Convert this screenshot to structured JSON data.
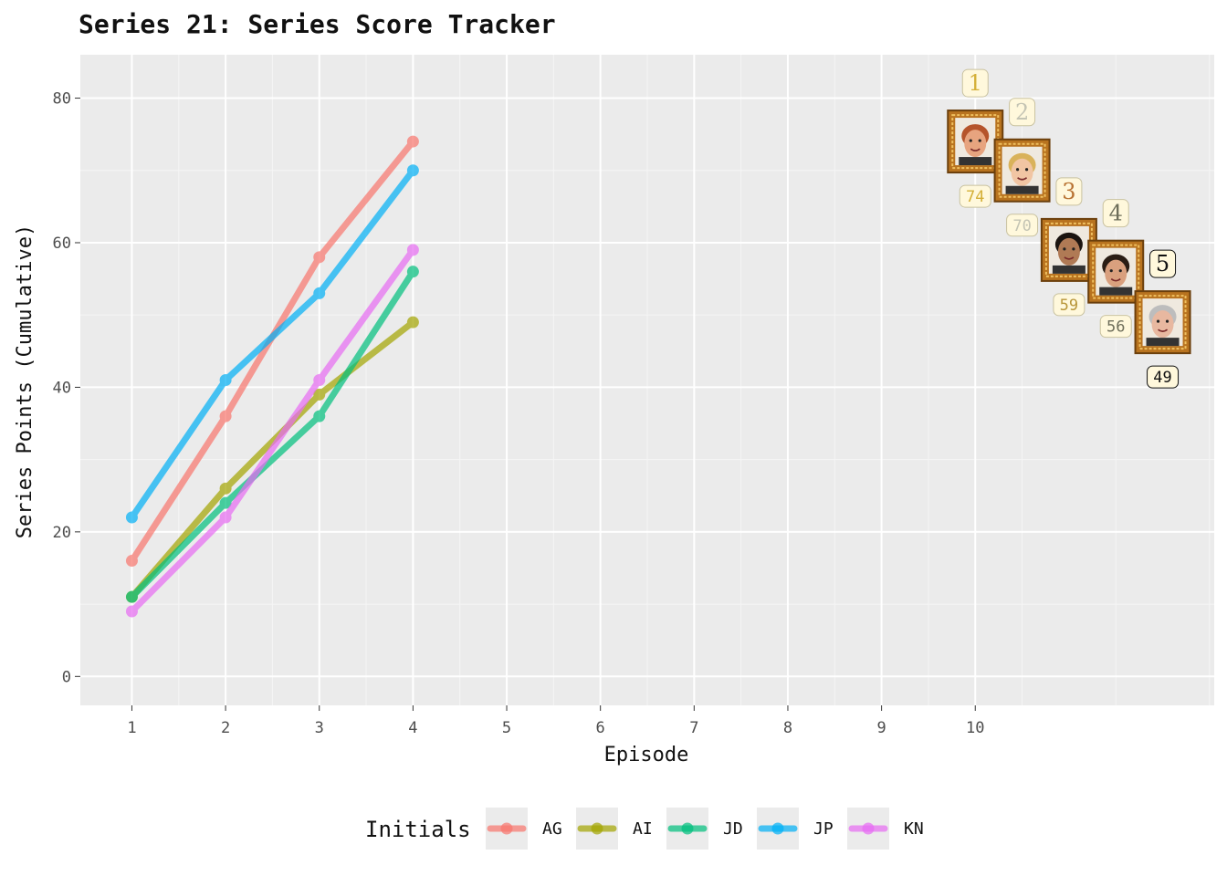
{
  "chart_data": {
    "type": "line",
    "title": "Series 21: Series Score Tracker",
    "xlabel": "Episode",
    "ylabel": "Series Points (Cumulative)",
    "x": [
      1,
      2,
      3,
      4
    ],
    "x_ticks": [
      "1",
      "2",
      "3",
      "4",
      "5",
      "6",
      "7",
      "8",
      "9",
      "10"
    ],
    "y_ticks": [
      "0",
      "20",
      "40",
      "60",
      "80"
    ],
    "xlim": [
      0.45,
      12.55
    ],
    "ylim": [
      -4,
      86
    ],
    "grid": true,
    "legend_title": "Initials",
    "legend_position": "bottom",
    "series": [
      {
        "name": "AG",
        "color": "#F8766D",
        "values": [
          16,
          36,
          58,
          74
        ]
      },
      {
        "name": "AI",
        "color": "#A3A500",
        "values": [
          11,
          26,
          39,
          49
        ]
      },
      {
        "name": "JD",
        "color": "#00BF7D",
        "values": [
          11,
          24,
          36,
          56
        ]
      },
      {
        "name": "JP",
        "color": "#00B0F6",
        "values": [
          22,
          41,
          53,
          70
        ]
      },
      {
        "name": "KN",
        "color": "#E76BF3",
        "values": [
          9,
          22,
          41,
          59
        ]
      }
    ],
    "leaderboard": [
      {
        "rank": "1",
        "score": "74",
        "x": 10.0,
        "y": 74,
        "rank_color": "#D4AF37",
        "score_color": "#D4AF37",
        "box_fill": "#FFF8DC",
        "face": "#e7a47f",
        "hair": "#b5542b"
      },
      {
        "rank": "2",
        "score": "70",
        "x": 10.5,
        "y": 70,
        "rank_color": "#C4C4B4",
        "score_color": "#C4C4B4",
        "box_fill": "#FFF8DC",
        "face": "#f1c5a3",
        "hair": "#d9b25a"
      },
      {
        "rank": "3",
        "score": "59",
        "x": 11.0,
        "y": 59,
        "rank_color": "#B87333",
        "score_color": "#B8963A",
        "box_fill": "#FFF8DC",
        "face": "#b07a55",
        "hair": "#1b1410"
      },
      {
        "rank": "4",
        "score": "56",
        "x": 11.5,
        "y": 56,
        "rank_color": "#6E6E5A",
        "score_color": "#6E6E5A",
        "box_fill": "#FFF8DC",
        "face": "#d9a07e",
        "hair": "#2a1d14"
      },
      {
        "rank": "5",
        "score": "49",
        "x": 12.0,
        "y": 49,
        "rank_color": "#111111",
        "score_color": "#111111",
        "box_fill": "#FFF8DC",
        "face": "#e8b8a0",
        "hair": "#bdbdbd"
      }
    ]
  }
}
